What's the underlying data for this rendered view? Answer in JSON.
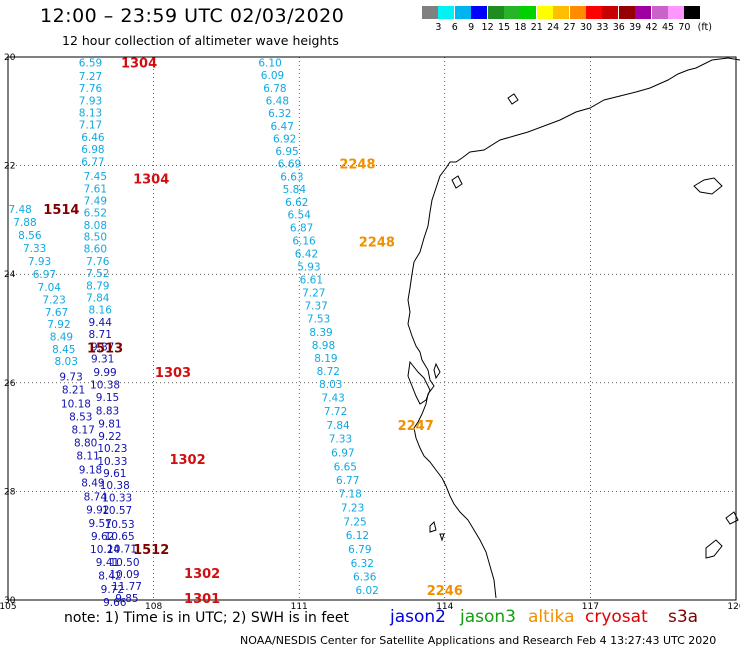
{
  "header": {
    "title": "12:00 – 23:59 UTC 02/03/2020",
    "subtitle": "12 hour collection of altimeter wave heights"
  },
  "legend": {
    "colors": [
      "#808080",
      "#00f2f2",
      "#00b4f0",
      "#0000ff",
      "#1e8c1e",
      "#28b428",
      "#00d200",
      "#ffff00",
      "#ffbe00",
      "#ff8c00",
      "#ff0000",
      "#c80000",
      "#960000",
      "#a000a0",
      "#c864c8",
      "#ff96ff",
      "#000000"
    ],
    "labels": [
      "3",
      "6",
      "9",
      "12",
      "15",
      "18",
      "21",
      "24",
      "27",
      "30",
      "33",
      "36",
      "39",
      "42",
      "45",
      "70"
    ],
    "unit": "(ft)"
  },
  "axes": {
    "lat_labels": [
      "20",
      "22",
      "24",
      "26",
      "28",
      "30"
    ],
    "lon_labels": [
      "105",
      "108",
      "111",
      "114",
      "117",
      "120"
    ]
  },
  "tracks": [
    {
      "color": "#10a8e0",
      "points": [
        [
          -106.7,
          20.1,
          "6.59"
        ],
        [
          -106.7,
          20.35,
          "7.27"
        ],
        [
          -106.7,
          20.57,
          "7.76"
        ],
        [
          -106.7,
          20.8,
          "7.93"
        ],
        [
          -106.7,
          21.02,
          "8.13"
        ],
        [
          -106.7,
          21.24,
          "7.17"
        ],
        [
          -106.75,
          21.47,
          "6.46"
        ],
        [
          -106.75,
          21.69,
          "6.98"
        ],
        [
          -106.75,
          21.92,
          "6.77"
        ],
        [
          -106.8,
          22.19,
          "7.45"
        ],
        [
          -106.8,
          22.42,
          "7.61"
        ],
        [
          -106.8,
          22.64,
          "7.49"
        ],
        [
          -106.8,
          22.86,
          "6.52"
        ],
        [
          -106.8,
          23.09,
          "8.08"
        ],
        [
          -106.8,
          23.31,
          "8.50"
        ],
        [
          -106.8,
          23.53,
          "8.60"
        ],
        [
          -106.85,
          23.76,
          "7.76"
        ],
        [
          -106.85,
          23.98,
          "7.52"
        ],
        [
          -106.85,
          24.21,
          "8.79"
        ],
        [
          -106.85,
          24.43,
          "7.84"
        ],
        [
          -106.9,
          24.65,
          "8.16"
        ]
      ],
      "labels": [
        {
          "text": "1304",
          "lon": -107.7,
          "lat": 20.1,
          "color": "#d01010"
        },
        {
          "text": "1304",
          "lon": -107.95,
          "lat": 22.24,
          "color": "#d01010"
        }
      ]
    },
    {
      "color": "#1010b0",
      "points": [
        [
          -106.9,
          24.88,
          "9.44"
        ],
        [
          -106.9,
          25.1,
          "8.71"
        ],
        [
          -106.95,
          25.33,
          "9.87"
        ],
        [
          -106.95,
          25.55,
          "9.31"
        ],
        [
          -107.0,
          25.8,
          "9.99"
        ],
        [
          -107.0,
          26.03,
          "10.38"
        ],
        [
          -107.05,
          26.26,
          "9.15"
        ],
        [
          -107.05,
          26.51,
          "8.83"
        ],
        [
          -107.1,
          26.75,
          "9.81"
        ],
        [
          -107.1,
          26.98,
          "9.22"
        ],
        [
          -107.15,
          27.2,
          "10.23"
        ],
        [
          -107.15,
          27.44,
          "10.33"
        ],
        [
          -107.2,
          27.66,
          "9.61"
        ],
        [
          -107.2,
          27.88,
          "10.38"
        ],
        [
          -107.25,
          28.11,
          "10.33"
        ],
        [
          -107.25,
          28.34,
          "10.57"
        ],
        [
          -107.3,
          28.6,
          "10.53"
        ],
        [
          -107.3,
          28.82,
          "10.65"
        ],
        [
          -107.35,
          29.05,
          "10.71"
        ],
        [
          -107.4,
          29.3,
          "10.50"
        ],
        [
          -107.4,
          29.52,
          "10.09"
        ],
        [
          -107.45,
          29.74,
          "11.77"
        ],
        [
          -107.45,
          29.96,
          "9.85"
        ]
      ],
      "labels": [
        {
          "text": "1303",
          "lon": -108.4,
          "lat": 25.8,
          "color": "#d01010"
        },
        {
          "text": "1302",
          "lon": -108.7,
          "lat": 27.4,
          "color": "#d01010"
        },
        {
          "text": "1302",
          "lon": -109.0,
          "lat": 29.5,
          "color": "#d01010"
        },
        {
          "text": "1301",
          "lon": -109.0,
          "lat": 29.96,
          "color": "#d01010"
        }
      ]
    },
    {
      "color": "#10a8e0",
      "points": [
        [
          -105.25,
          22.8,
          "7.48"
        ],
        [
          -105.35,
          23.04,
          "7.88"
        ],
        [
          -105.45,
          23.28,
          "8.56"
        ],
        [
          -105.55,
          23.52,
          "7.33"
        ],
        [
          -105.65,
          23.76,
          "7.93"
        ],
        [
          -105.75,
          24.0,
          "6.97"
        ],
        [
          -105.85,
          24.24,
          "7.04"
        ],
        [
          -105.95,
          24.47,
          "7.23"
        ],
        [
          -106.0,
          24.7,
          "7.67"
        ],
        [
          -106.05,
          24.92,
          "7.92"
        ],
        [
          -106.1,
          25.15,
          "8.49"
        ],
        [
          -106.15,
          25.38,
          "8.45"
        ],
        [
          -106.2,
          25.6,
          "8.03"
        ]
      ],
      "labels": [
        {
          "text": "1514",
          "lon": -106.1,
          "lat": 22.8,
          "color": "#800000"
        },
        {
          "text": "1513",
          "lon": -107.0,
          "lat": 25.35,
          "color": "#800000"
        }
      ]
    },
    {
      "color": "#1010b0",
      "points": [
        [
          -106.3,
          25.88,
          "9.73"
        ],
        [
          -106.35,
          26.12,
          "8.21"
        ],
        [
          -106.4,
          26.38,
          "10.18"
        ],
        [
          -106.5,
          26.62,
          "8.53"
        ],
        [
          -106.55,
          26.86,
          "8.17"
        ],
        [
          -106.6,
          27.1,
          "8.80"
        ],
        [
          -106.65,
          27.34,
          "8.11"
        ],
        [
          -106.7,
          27.6,
          "9.18"
        ],
        [
          -106.75,
          27.84,
          "8.49"
        ],
        [
          -106.8,
          28.09,
          "8.74"
        ],
        [
          -106.85,
          28.33,
          "9.92"
        ],
        [
          -106.9,
          28.58,
          "9.57"
        ],
        [
          -106.95,
          28.82,
          "9.62"
        ],
        [
          -107.0,
          29.06,
          "10.24"
        ],
        [
          -107.05,
          29.3,
          "9.41"
        ],
        [
          -107.1,
          29.55,
          "8.42"
        ],
        [
          -107.15,
          29.8,
          "9.72"
        ],
        [
          -107.2,
          30.04,
          "9.66"
        ]
      ],
      "labels": [
        {
          "text": "1512",
          "lon": -107.95,
          "lat": 29.06,
          "color": "#800000"
        }
      ]
    },
    {
      "color": "#10a8e0",
      "points": [
        [
          -110.4,
          20.1,
          "6.10"
        ],
        [
          -110.45,
          20.33,
          "6.09"
        ],
        [
          -110.5,
          20.57,
          "6.78"
        ],
        [
          -110.55,
          20.8,
          "6.48"
        ],
        [
          -110.6,
          21.03,
          "6.32"
        ],
        [
          -110.65,
          21.27,
          "6.47"
        ],
        [
          -110.7,
          21.5,
          "6.92"
        ],
        [
          -110.75,
          21.73,
          "6.95"
        ],
        [
          -110.8,
          21.96,
          "6.69"
        ],
        [
          -110.85,
          22.2,
          "6.63"
        ],
        [
          -110.9,
          22.43,
          "5.84"
        ],
        [
          -110.95,
          22.67,
          "6.62"
        ],
        [
          -111.0,
          22.9,
          "6.54"
        ],
        [
          -111.05,
          23.14,
          "6.87"
        ],
        [
          -111.1,
          23.38,
          "6.16"
        ],
        [
          -111.15,
          23.62,
          "6.42"
        ],
        [
          -111.2,
          23.86,
          "5.93"
        ],
        [
          -111.25,
          24.1,
          "6.61"
        ],
        [
          -111.3,
          24.34,
          "7.27"
        ],
        [
          -111.35,
          24.58,
          "7.37"
        ],
        [
          -111.4,
          24.82,
          "7.53"
        ],
        [
          -111.45,
          25.06,
          "8.39"
        ],
        [
          -111.5,
          25.3,
          "8.98"
        ],
        [
          -111.55,
          25.54,
          "8.19"
        ],
        [
          -111.6,
          25.78,
          "8.72"
        ],
        [
          -111.65,
          26.02,
          "8.03"
        ],
        [
          -111.7,
          26.27,
          "7.43"
        ],
        [
          -111.75,
          26.52,
          "7.72"
        ],
        [
          -111.8,
          26.78,
          "7.84"
        ],
        [
          -111.85,
          27.03,
          "7.33"
        ],
        [
          -111.9,
          27.28,
          "6.97"
        ],
        [
          -111.95,
          27.54,
          "6.65"
        ],
        [
          -112.0,
          27.79,
          "6.77"
        ],
        [
          -112.05,
          28.04,
          "7.18"
        ],
        [
          -112.1,
          28.3,
          "7.23"
        ],
        [
          -112.15,
          28.55,
          "7.25"
        ],
        [
          -112.2,
          28.8,
          "6.12"
        ],
        [
          -112.25,
          29.06,
          "6.79"
        ],
        [
          -112.3,
          29.32,
          "6.32"
        ],
        [
          -112.35,
          29.57,
          "6.36"
        ],
        [
          -112.4,
          29.82,
          "6.02"
        ]
      ],
      "labels": [
        {
          "text": "2248",
          "lon": -112.2,
          "lat": 21.96,
          "color": "#f09000"
        },
        {
          "text": "2248",
          "lon": -112.6,
          "lat": 23.4,
          "color": "#f09000"
        },
        {
          "text": "2247",
          "lon": -113.4,
          "lat": 26.78,
          "color": "#f09000"
        },
        {
          "text": "2246",
          "lon": -114.0,
          "lat": 29.82,
          "color": "#f09000"
        }
      ]
    }
  ],
  "footer": {
    "note": "note:  1) Time is in UTC;  2) SWH is in feet",
    "credit": "NOAA/NESDIS Center for Satellite Applications and Research   Feb  4 13:27:43 UTC 2020",
    "satellites": [
      {
        "name": "jason2",
        "color": "#0000e0"
      },
      {
        "name": "jason3",
        "color": "#10a010"
      },
      {
        "name": "altika",
        "color": "#f09000"
      },
      {
        "name": "cryosat",
        "color": "#e00000"
      },
      {
        "name": "s3a",
        "color": "#800000"
      }
    ]
  }
}
